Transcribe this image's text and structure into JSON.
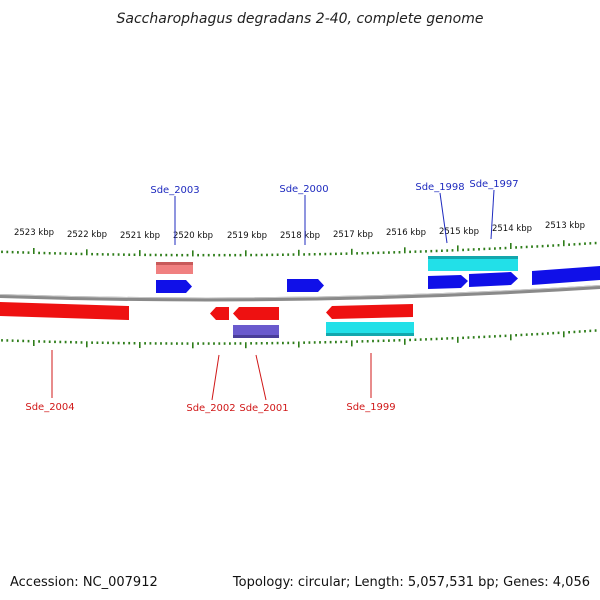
{
  "title": "Saccharophagus degradans 2-40, complete genome",
  "footer": {
    "accession": "Accession: NC_007912",
    "summary": "Topology: circular; Length: 5,057,531 bp; Genes: 4,056"
  },
  "axis": {
    "unit": "kbp",
    "ticks": [
      "2523 kbp",
      "2522 kbp",
      "2521 kbp",
      "2520 kbp",
      "2519 kbp",
      "2518 kbp",
      "2517 kbp",
      "2516 kbp",
      "2515 kbp",
      "2514 kbp",
      "2513 kbp"
    ]
  },
  "colors": {
    "forward_cds": "#1010e8",
    "reverse_cds": "#ee1111",
    "forward_feature": "#f08080",
    "reverse_feature": "#6a5acd",
    "rna_feature": "#22e0e8",
    "backbone": "#8a8a8a",
    "tick": "#2e7d1a",
    "label_top": "#1f2bbf",
    "label_bottom": "#d01818"
  },
  "genes_top": [
    {
      "name": "Sde_2003"
    },
    {
      "name": "Sde_2000"
    },
    {
      "name": "Sde_1998"
    },
    {
      "name": "Sde_1997"
    }
  ],
  "genes_bottom": [
    {
      "name": "Sde_2004"
    },
    {
      "name": "Sde_2002"
    },
    {
      "name": "Sde_2001"
    },
    {
      "name": "Sde_1999"
    }
  ]
}
